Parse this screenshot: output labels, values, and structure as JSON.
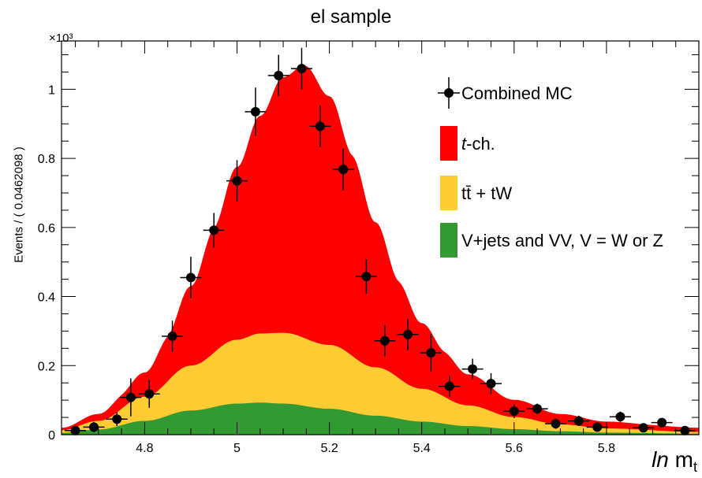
{
  "chart_data": {
    "type": "area",
    "title": "el sample",
    "xlabel": "ln m_t",
    "xlabel_italic": "ln",
    "xlabel_main": "m",
    "xlabel_sub": "t",
    "ylabel": "Events / ( 0.0462098 )",
    "y_multiplier": "×10³",
    "xlim": [
      4.62,
      6.0
    ],
    "ylim": [
      0,
      1.14
    ],
    "x_ticks": [
      "4.8",
      "5",
      "5.2",
      "5.4",
      "5.6",
      "5.8"
    ],
    "x_tick_values": [
      4.8,
      5.0,
      5.2,
      5.4,
      5.6,
      5.8
    ],
    "y_ticks": [
      "0",
      "0.2",
      "0.4",
      "0.6",
      "0.8",
      "1"
    ],
    "y_tick_values": [
      0,
      0.2,
      0.4,
      0.6,
      0.8,
      1.0
    ],
    "stack": [
      {
        "name": "V+jets and VV, V = W or Z",
        "color": "#339933",
        "x": [
          4.62,
          4.7,
          4.8,
          4.9,
          5.0,
          5.05,
          5.1,
          5.2,
          5.3,
          5.4,
          5.5,
          5.6,
          5.7,
          5.8,
          6.0
        ],
        "values": [
          0.005,
          0.015,
          0.04,
          0.07,
          0.09,
          0.093,
          0.09,
          0.075,
          0.055,
          0.038,
          0.025,
          0.016,
          0.01,
          0.006,
          0.003
        ]
      },
      {
        "name": "tt̄ + tW",
        "color": "#ffcc33",
        "x": [
          4.62,
          4.7,
          4.8,
          4.9,
          5.0,
          5.05,
          5.1,
          5.2,
          5.3,
          5.4,
          5.5,
          5.6,
          5.7,
          5.8,
          6.0
        ],
        "values": [
          0.008,
          0.025,
          0.07,
          0.13,
          0.185,
          0.2,
          0.205,
          0.185,
          0.14,
          0.095,
          0.06,
          0.035,
          0.02,
          0.012,
          0.005
        ]
      },
      {
        "name": "t-ch.",
        "color": "#ff0000",
        "x": [
          4.62,
          4.7,
          4.75,
          4.8,
          4.85,
          4.9,
          4.95,
          5.0,
          5.05,
          5.1,
          5.15,
          5.2,
          5.25,
          5.3,
          5.35,
          5.4,
          5.45,
          5.5,
          5.6,
          5.7,
          5.8,
          5.9,
          6.0
        ],
        "values": [
          0.007,
          0.02,
          0.04,
          0.07,
          0.13,
          0.23,
          0.36,
          0.5,
          0.63,
          0.74,
          0.79,
          0.72,
          0.58,
          0.42,
          0.28,
          0.19,
          0.13,
          0.09,
          0.05,
          0.03,
          0.02,
          0.015,
          0.012
        ]
      }
    ],
    "combined_mc": {
      "name": "Combined MC",
      "x": [
        4.65,
        4.69,
        4.74,
        4.77,
        4.81,
        4.86,
        4.9,
        4.95,
        5.0,
        5.04,
        5.09,
        5.14,
        5.18,
        5.23,
        5.28,
        5.32,
        5.37,
        5.42,
        5.46,
        5.51,
        5.55,
        5.6,
        5.65,
        5.69,
        5.74,
        5.78,
        5.83,
        5.88,
        5.92,
        5.97
      ],
      "y": [
        0.012,
        0.022,
        0.045,
        0.108,
        0.118,
        0.285,
        0.455,
        0.592,
        0.735,
        0.935,
        1.04,
        1.06,
        0.893,
        0.768,
        0.458,
        0.272,
        0.29,
        0.237,
        0.14,
        0.19,
        0.148,
        0.068,
        0.075,
        0.032,
        0.04,
        0.022,
        0.052,
        0.02,
        0.035,
        0.012
      ],
      "yerr": [
        0.01,
        0.015,
        0.02,
        0.055,
        0.04,
        0.045,
        0.06,
        0.05,
        0.06,
        0.07,
        0.06,
        0.06,
        0.06,
        0.06,
        0.05,
        0.045,
        0.045,
        0.055,
        0.03,
        0.03,
        0.03,
        0.02,
        0.015,
        0.015,
        0.015,
        0.012,
        0.015,
        0.012,
        0.012,
        0.01
      ],
      "xerr": 0.023
    },
    "legend": [
      {
        "label": "Combined MC",
        "kind": "marker",
        "color": "#000000"
      },
      {
        "label": "-ch.",
        "italic_prefix": "t",
        "kind": "box",
        "color": "#ff0000"
      },
      {
        "label": "tt̄ + tW",
        "kind": "box",
        "color": "#ffcc33"
      },
      {
        "label": "V+jets and VV, V = W or Z",
        "kind": "box",
        "color": "#339933"
      }
    ],
    "legend_position": "top-right",
    "grid": false
  }
}
